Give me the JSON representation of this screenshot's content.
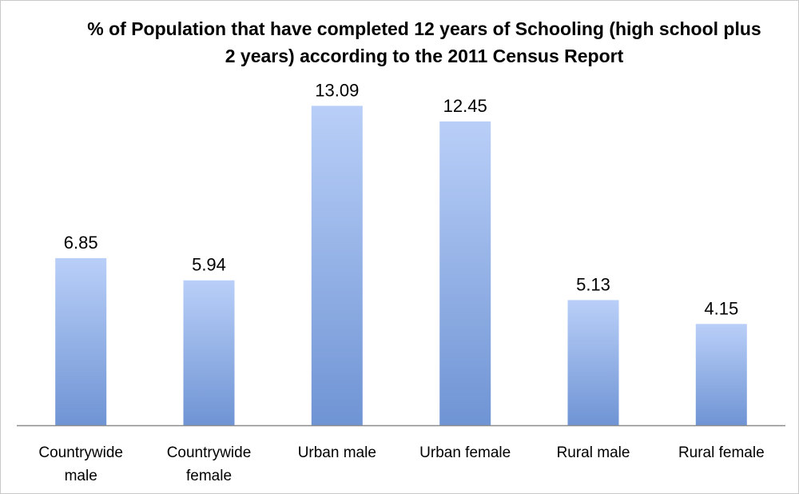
{
  "chart_data": {
    "type": "bar",
    "title": "% of Population that have completed 12 years of Schooling (high school plus 2 years) according to the 2011 Census Report",
    "categories": [
      [
        "Countrywide",
        "male"
      ],
      [
        "Countrywide",
        "female"
      ],
      [
        "Urban male"
      ],
      [
        "Urban female"
      ],
      [
        "Rural male"
      ],
      [
        "Rural female"
      ]
    ],
    "values": [
      6.85,
      5.94,
      13.09,
      12.45,
      5.13,
      4.15
    ],
    "value_labels": [
      "6.85",
      "5.94",
      "13.09",
      "12.45",
      "5.13",
      "4.15"
    ],
    "ylim": [
      0,
      13.66
    ],
    "grid": false,
    "legend": "none",
    "y_axis_visible": false,
    "bar_color_top": "#b9cff8",
    "bar_color_bottom": "#6f94d4",
    "axis_color": "#8c8c8c"
  }
}
